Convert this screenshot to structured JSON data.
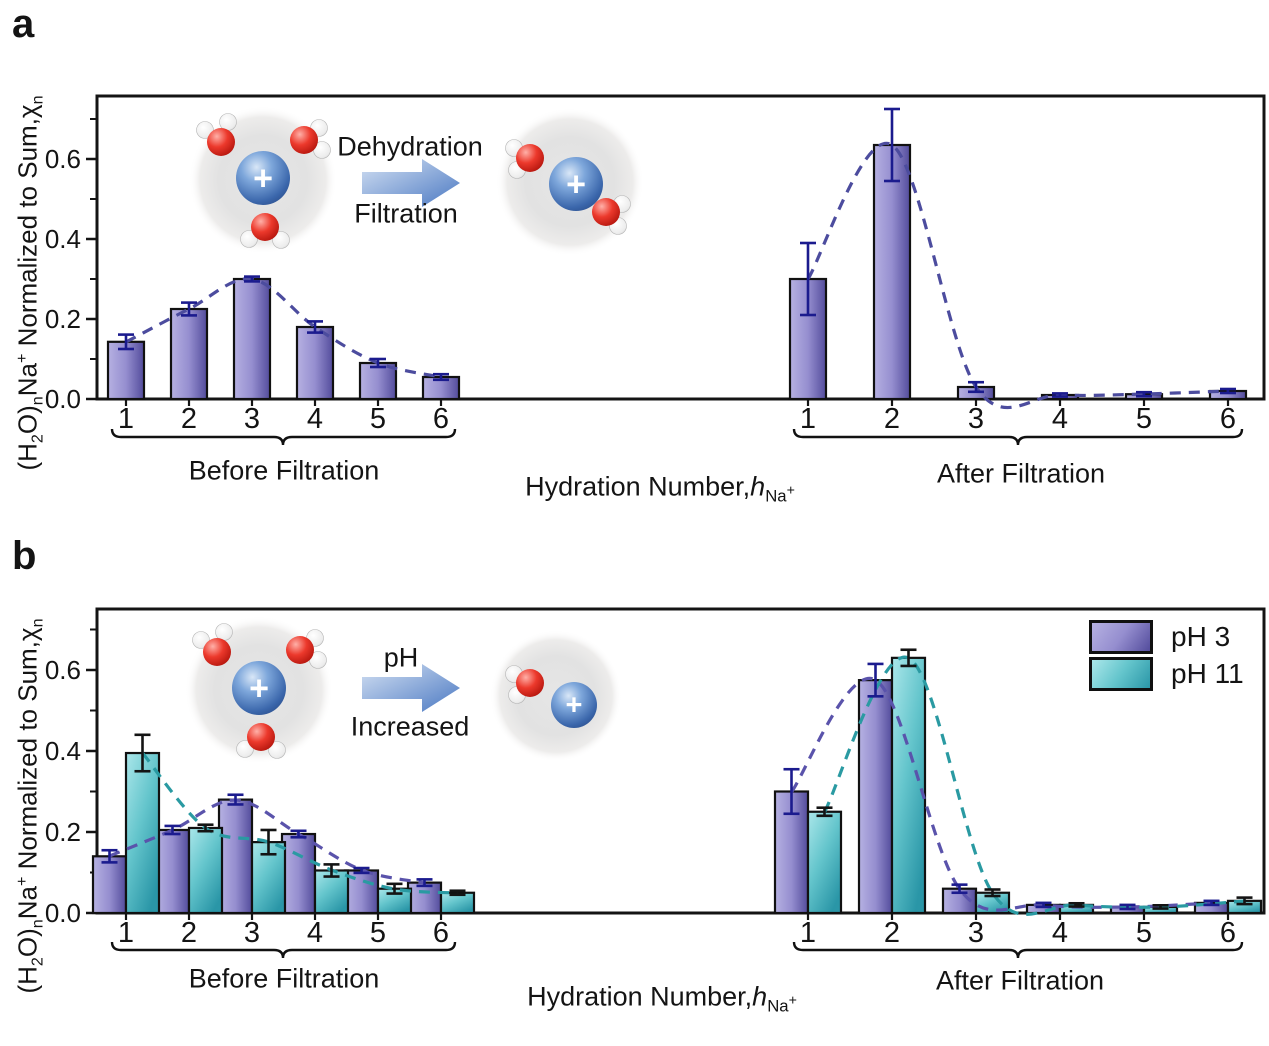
{
  "colors": {
    "bar_purple_light": "#b6b1e2",
    "bar_purple_dark": "#534c9c",
    "bar_teal_light": "#abe7ea",
    "bar_teal_dark": "#2a96a7",
    "error_navy": "#1b1b8e",
    "error_black": "#141414",
    "dash_navy": "#4c4c9e",
    "dash_purple": "#5a53ab",
    "dash_teal": "#2a9aa2",
    "arrow_blue": "#4a78c2",
    "ion_blue": "#3a66ab",
    "oxygen_red": "#d92011",
    "axis": "#141414",
    "background": "#ffffff"
  },
  "axis": {
    "y_parts": {
      "p1": "(H",
      "s1": "2",
      "p2": "O)",
      "s2": "n",
      "p3": "Na",
      "sp1": "+",
      "p4": " Normalized to Sum,",
      "p5": "χ",
      "s3": "n"
    },
    "x_parts": {
      "prefix": "Hydration Number,",
      "h": "h",
      "sub": "Na",
      "sub_sup": "+"
    }
  },
  "chart_data": [
    {
      "panel": "a",
      "panel_label": "a",
      "type": "bar",
      "title": "",
      "ylabel": "(H₂O)ₙNa⁺ Normalized to Sum,χₙ",
      "xlabel": "Hydration Number,hNa⁺",
      "ylim": [
        0,
        0.76
      ],
      "yticks": [
        0.0,
        0.2,
        0.4,
        0.6
      ],
      "ytick_labels": [
        "0.0",
        "0.2",
        "0.4",
        "0.6"
      ],
      "minor_yticks": [
        0.1,
        0.3,
        0.5,
        0.7
      ],
      "categories": [
        "1",
        "2",
        "3",
        "4",
        "5",
        "6"
      ],
      "grid": false,
      "error_bars": true,
      "groups": [
        {
          "label": "Before Filtration",
          "series": [
            {
              "name": "",
              "color_key": "purple",
              "values": [
                0.143,
                0.225,
                0.3,
                0.18,
                0.09,
                0.055
              ],
              "errors": [
                0.018,
                0.016,
                0.006,
                0.014,
                0.01,
                0.007
              ]
            }
          ]
        },
        {
          "label": "After Filtration",
          "series": [
            {
              "name": "",
              "color_key": "purple",
              "values": [
                0.3,
                0.635,
                0.03,
                0.01,
                0.012,
                0.02
              ],
              "errors": [
                0.09,
                0.09,
                0.012,
                0.004,
                0.005,
                0.005
              ]
            }
          ]
        }
      ],
      "annotation": {
        "arrow_top": "Dehydration",
        "arrow_bottom": "Filtration",
        "ion_symbol": "+",
        "cluster_left_waters": 3,
        "cluster_right_waters": 2
      }
    },
    {
      "panel": "b",
      "panel_label": "b",
      "type": "bar",
      "title": "",
      "ylabel": "(H₂O)ₙNa⁺ Normalized to Sum,χₙ",
      "xlabel": "Hydration Number,hNa⁺",
      "ylim": [
        0,
        0.76
      ],
      "yticks": [
        0.0,
        0.2,
        0.4,
        0.6
      ],
      "ytick_labels": [
        "0.0",
        "0.2",
        "0.4",
        "0.6"
      ],
      "minor_yticks": [
        0.1,
        0.3,
        0.5,
        0.7
      ],
      "categories": [
        "1",
        "2",
        "3",
        "4",
        "5",
        "6"
      ],
      "grid": false,
      "error_bars": true,
      "legend_position": "top-right",
      "legend": [
        {
          "label": "pH 3",
          "color_key": "purple"
        },
        {
          "label": "pH 11",
          "color_key": "teal"
        }
      ],
      "groups": [
        {
          "label": "Before Filtration",
          "series": [
            {
              "name": "pH 3",
              "color_key": "purple",
              "values": [
                0.14,
                0.205,
                0.28,
                0.195,
                0.105,
                0.075
              ],
              "errors": [
                0.015,
                0.01,
                0.012,
                0.008,
                0.006,
                0.008
              ]
            },
            {
              "name": "pH 11",
              "color_key": "teal",
              "values": [
                0.395,
                0.21,
                0.175,
                0.105,
                0.06,
                0.05
              ],
              "errors": [
                0.045,
                0.008,
                0.03,
                0.015,
                0.012,
                0.005
              ]
            }
          ]
        },
        {
          "label": "After Filtration",
          "series": [
            {
              "name": "pH 3",
              "color_key": "purple",
              "values": [
                0.3,
                0.575,
                0.06,
                0.02,
                0.015,
                0.025
              ],
              "errors": [
                0.055,
                0.04,
                0.01,
                0.005,
                0.005,
                0.005
              ]
            },
            {
              "name": "pH 11",
              "color_key": "teal",
              "values": [
                0.25,
                0.63,
                0.05,
                0.02,
                0.015,
                0.03
              ],
              "errors": [
                0.01,
                0.02,
                0.008,
                0.004,
                0.004,
                0.008
              ]
            }
          ]
        }
      ],
      "annotation": {
        "arrow_top": "pH",
        "arrow_bottom": "Increased",
        "ion_symbol": "+",
        "cluster_left_waters": 3,
        "cluster_right_waters": 1
      }
    }
  ]
}
